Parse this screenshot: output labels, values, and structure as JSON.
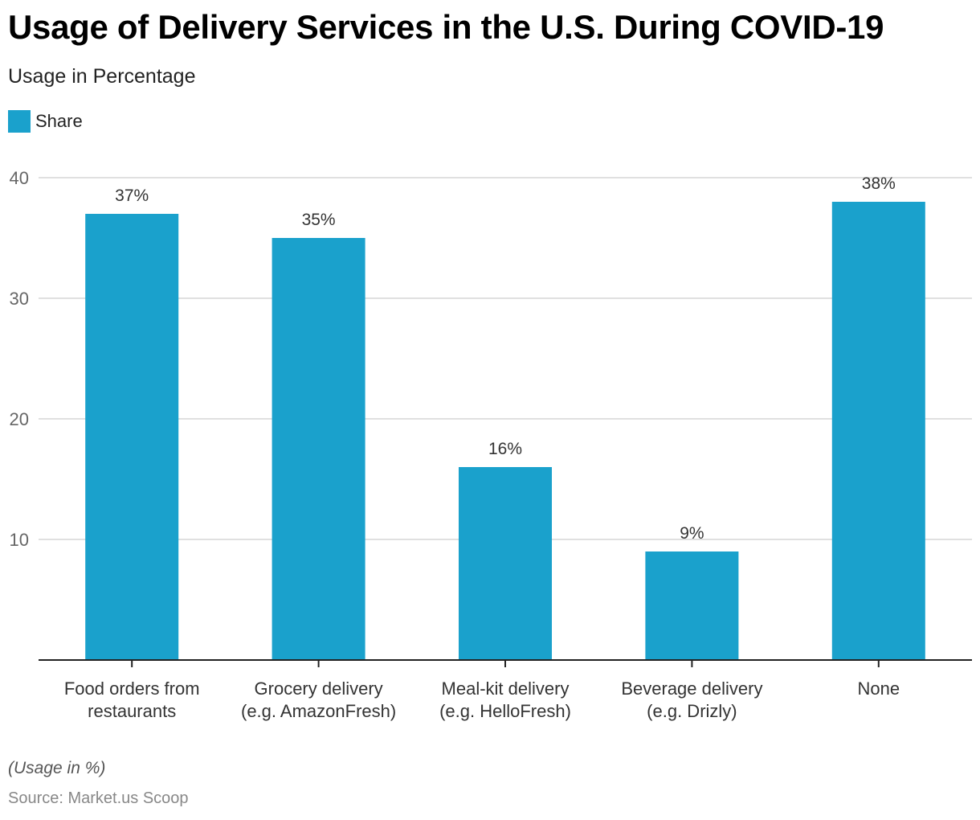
{
  "header": {
    "title": "Usage of Delivery Services in the U.S. During COVID-19",
    "subtitle": "Usage in Percentage"
  },
  "legend": {
    "label": "Share",
    "color": "#1aa1cc"
  },
  "footer": {
    "note": "(Usage in %)",
    "source": "Source: Market.us Scoop"
  },
  "chart_data": {
    "type": "bar",
    "title": "Usage of Delivery Services in the U.S. During COVID-19",
    "subtitle": "Usage in Percentage",
    "xlabel": "",
    "ylabel": "",
    "categories": [
      [
        "Food orders from",
        "restaurants"
      ],
      [
        "Grocery delivery",
        "(e.g. AmazonFresh)"
      ],
      [
        "Meal-kit delivery",
        "(e.g. HelloFresh)"
      ],
      [
        "Beverage delivery",
        "(e.g. Drizly)"
      ],
      [
        "None"
      ]
    ],
    "series": [
      {
        "name": "Share",
        "color": "#1aa1cc",
        "values": [
          37,
          35,
          16,
          9,
          38
        ]
      }
    ],
    "data_labels": [
      "37%",
      "35%",
      "16%",
      "9%",
      "38%"
    ],
    "ylim": [
      0,
      40
    ],
    "yticks": [
      10,
      20,
      30,
      40
    ],
    "grid": true,
    "legend_position": "top-left"
  }
}
